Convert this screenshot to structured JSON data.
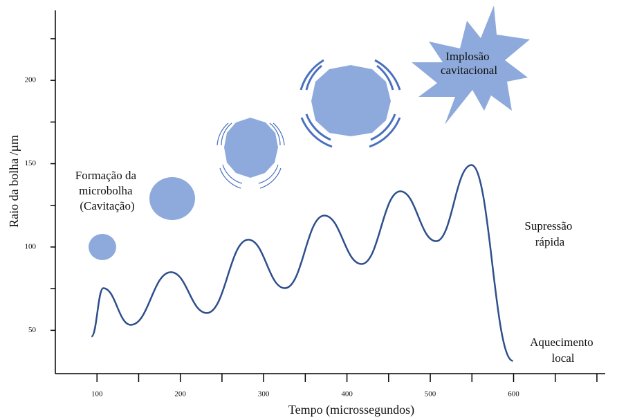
{
  "chart_data": {
    "type": "line",
    "x_label": "Tempo (microssegundos)",
    "y_label": "Raio da bolha /µm",
    "xlim": [
      50,
      710
    ],
    "ylim": [
      24,
      242
    ],
    "xticks": [
      100,
      200,
      300,
      400,
      500,
      600
    ],
    "xminorticks": [
      150,
      250,
      350,
      450,
      550,
      650,
      700
    ],
    "yticks": [
      50,
      100,
      150,
      200
    ],
    "yminorticks": [
      75,
      125,
      175,
      225
    ],
    "series": [
      {
        "color": "#2e4f8c",
        "x": [
          93.4,
          107.5,
          140.6,
          188.7,
          231.8,
          281.6,
          325.5,
          372.8,
          417.6,
          464,
          507.1,
          549.4,
          599.2
        ],
        "values": [
          46.3,
          75.3,
          53.3,
          84.9,
          60.4,
          104.4,
          75.3,
          118.9,
          89.8,
          133.4,
          103.5,
          149.2,
          31.7
        ]
      }
    ],
    "annotations": [
      {
        "lines": [
          "Formação da",
          "microbolha",
          "(Cavitação)"
        ]
      },
      {
        "lines": [
          "Implosão",
          "cavitacional"
        ]
      },
      {
        "lines": [
          "Supressão",
          "rápida"
        ]
      },
      {
        "lines": [
          "Aquecimento",
          "local"
        ]
      }
    ]
  }
}
